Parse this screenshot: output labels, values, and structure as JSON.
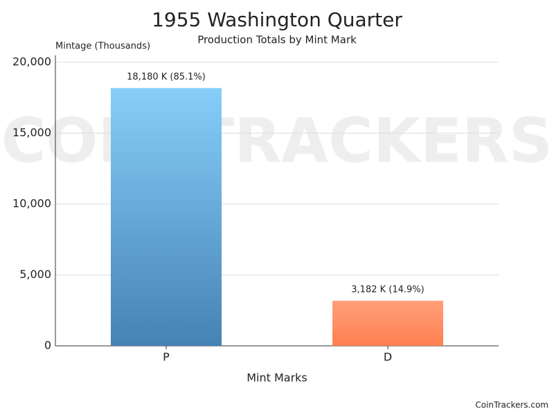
{
  "chart_data": {
    "type": "bar",
    "title": "1955 Washington Quarter",
    "subtitle": "Production Totals by Mint Mark",
    "y_label": "Mintage (Thousands)",
    "x_label": "Mint Marks",
    "categories": [
      "P",
      "D"
    ],
    "values": [
      18180,
      3182
    ],
    "value_labels": [
      "18,180 K (85.1%)",
      "3,182 K (14.9%)"
    ],
    "colors": [
      {
        "top": "#87cefa",
        "bottom": "#4682b4"
      },
      {
        "top": "#ffa07a",
        "bottom": "#ff7f50"
      }
    ],
    "ylim": [
      0,
      20000
    ],
    "yticks": [
      0,
      {
        "value": 5000,
        "label": "5,000"
      },
      {
        "value": 10000,
        "label": "10,000"
      },
      {
        "value": 15000,
        "label": "15,000"
      },
      {
        "value": 20000,
        "label": "20,000"
      }
    ],
    "grid": true,
    "watermark": "COIN TRACKERS",
    "source": "CoinTrackers.com"
  }
}
